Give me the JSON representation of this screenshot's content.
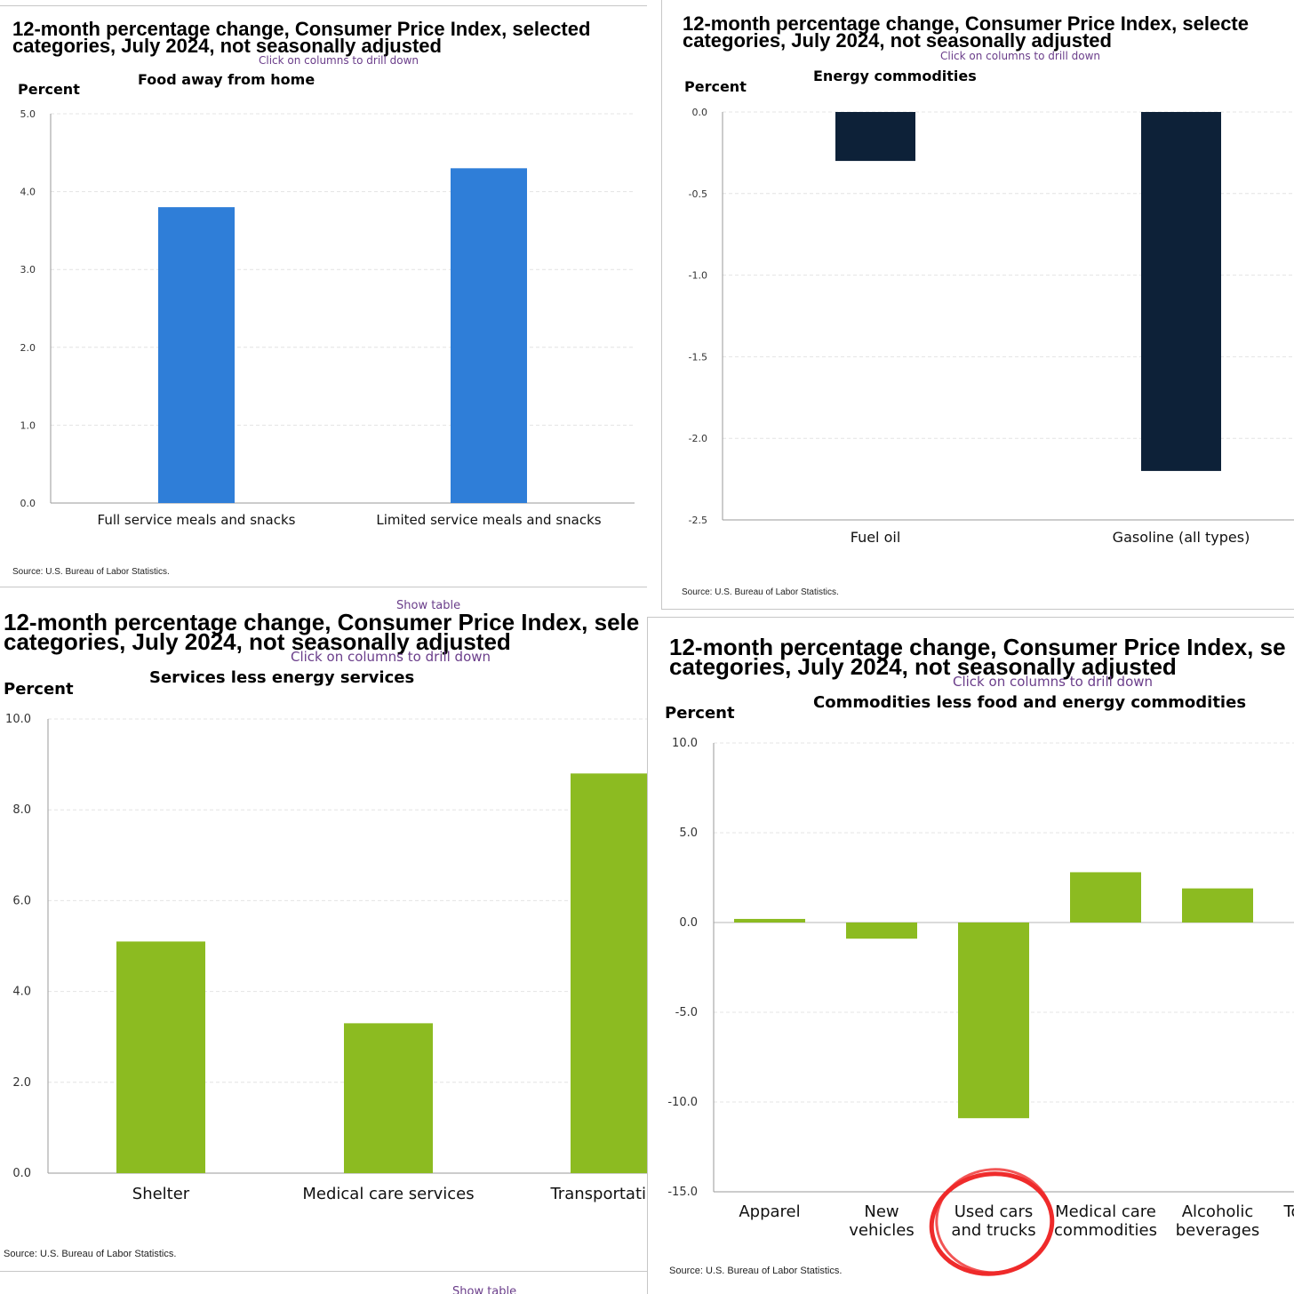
{
  "panels": [
    {
      "title_line1": "12-month percentage change, Consumer Price Index, selected",
      "title_line2": "categories, July 2024, not seasonally adjusted",
      "drill_text": "Click on columns to drill down",
      "ylabel": "Percent",
      "source": "Source: U.S. Bureau of Labor Statistics.",
      "colors": {
        "bar": "#2f7ed8"
      }
    },
    {
      "title_line1": "12-month percentage change, Consumer Price Index, selecte",
      "title_line2": "categories, July 2024, not seasonally adjusted",
      "drill_text": "Click on columns to drill down",
      "ylabel": "Percent",
      "source": "Source: U.S. Bureau of Labor Statistics.",
      "colors": {
        "bar": "#0d2138"
      }
    },
    {
      "title_line1": "12-month percentage change, Consumer Price Index, sele",
      "title_line2": "categories, July 2024, not seasonally adjusted",
      "drill_text": "Click on columns to drill down",
      "ylabel": "Percent",
      "source": "Source: U.S. Bureau of Labor Statistics.",
      "show_table_top": "Show table",
      "show_table_bottom": "Show table",
      "colors": {
        "bar": "#8cbb21"
      }
    },
    {
      "title_line1": "12-month percentage change, Consumer Price Index, se",
      "title_line2": "categories, July 2024, not seasonally adjusted",
      "drill_text": "Click on columns to drill down",
      "ylabel": "Percent",
      "source": "Source: U.S. Bureau of Labor Statistics.",
      "colors": {
        "bar": "#8cbb21",
        "annotation_circle": "#ef2b2b"
      }
    }
  ],
  "chart_data": [
    {
      "type": "bar",
      "title": "Food away from home",
      "categories": [
        "Full service meals and snacks",
        "Limited service meals and snacks"
      ],
      "values": [
        3.8,
        4.3
      ],
      "ylabel": "Percent",
      "ylim": [
        0,
        5
      ],
      "yticks": [
        "0.0",
        "1.0",
        "2.0",
        "3.0",
        "4.0",
        "5.0"
      ],
      "grid": true
    },
    {
      "type": "bar",
      "title": "Energy commodities",
      "categories": [
        "Fuel oil",
        "Gasoline (all types)"
      ],
      "values": [
        -0.3,
        -2.2
      ],
      "ylabel": "Percent",
      "ylim": [
        -2.5,
        0
      ],
      "yticks": [
        "0.0",
        "-0.5",
        "-1.0",
        "-1.5",
        "-2.0",
        "-2.5"
      ],
      "grid": true
    },
    {
      "type": "bar",
      "title": "Services less energy services",
      "categories": [
        "Shelter",
        "Medical care services",
        "Transportation s"
      ],
      "values": [
        5.1,
        3.3,
        8.8
      ],
      "ylabel": "Percent",
      "ylim": [
        0,
        10
      ],
      "yticks": [
        "0.0",
        "2.0",
        "4.0",
        "6.0",
        "8.0",
        "10.0"
      ],
      "grid": true
    },
    {
      "type": "bar",
      "title": "Commodities less food and energy commodities",
      "categories": [
        [
          "Apparel"
        ],
        [
          "New",
          "vehicles"
        ],
        [
          "Used cars",
          "and trucks"
        ],
        [
          "Medical care",
          "commodities"
        ],
        [
          "Alcoholic",
          "beverages"
        ],
        [
          "To"
        ]
      ],
      "values": [
        0.2,
        -0.9,
        -10.9,
        2.8,
        1.9,
        null
      ],
      "ylabel": "Percent",
      "ylim": [
        -15,
        10
      ],
      "yticks": [
        "10.0",
        "5.0",
        "0.0",
        "-5.0",
        "-10.0",
        "-15.0"
      ],
      "grid": true,
      "annotation": "red hand-drawn circle around Used cars and trucks"
    }
  ]
}
